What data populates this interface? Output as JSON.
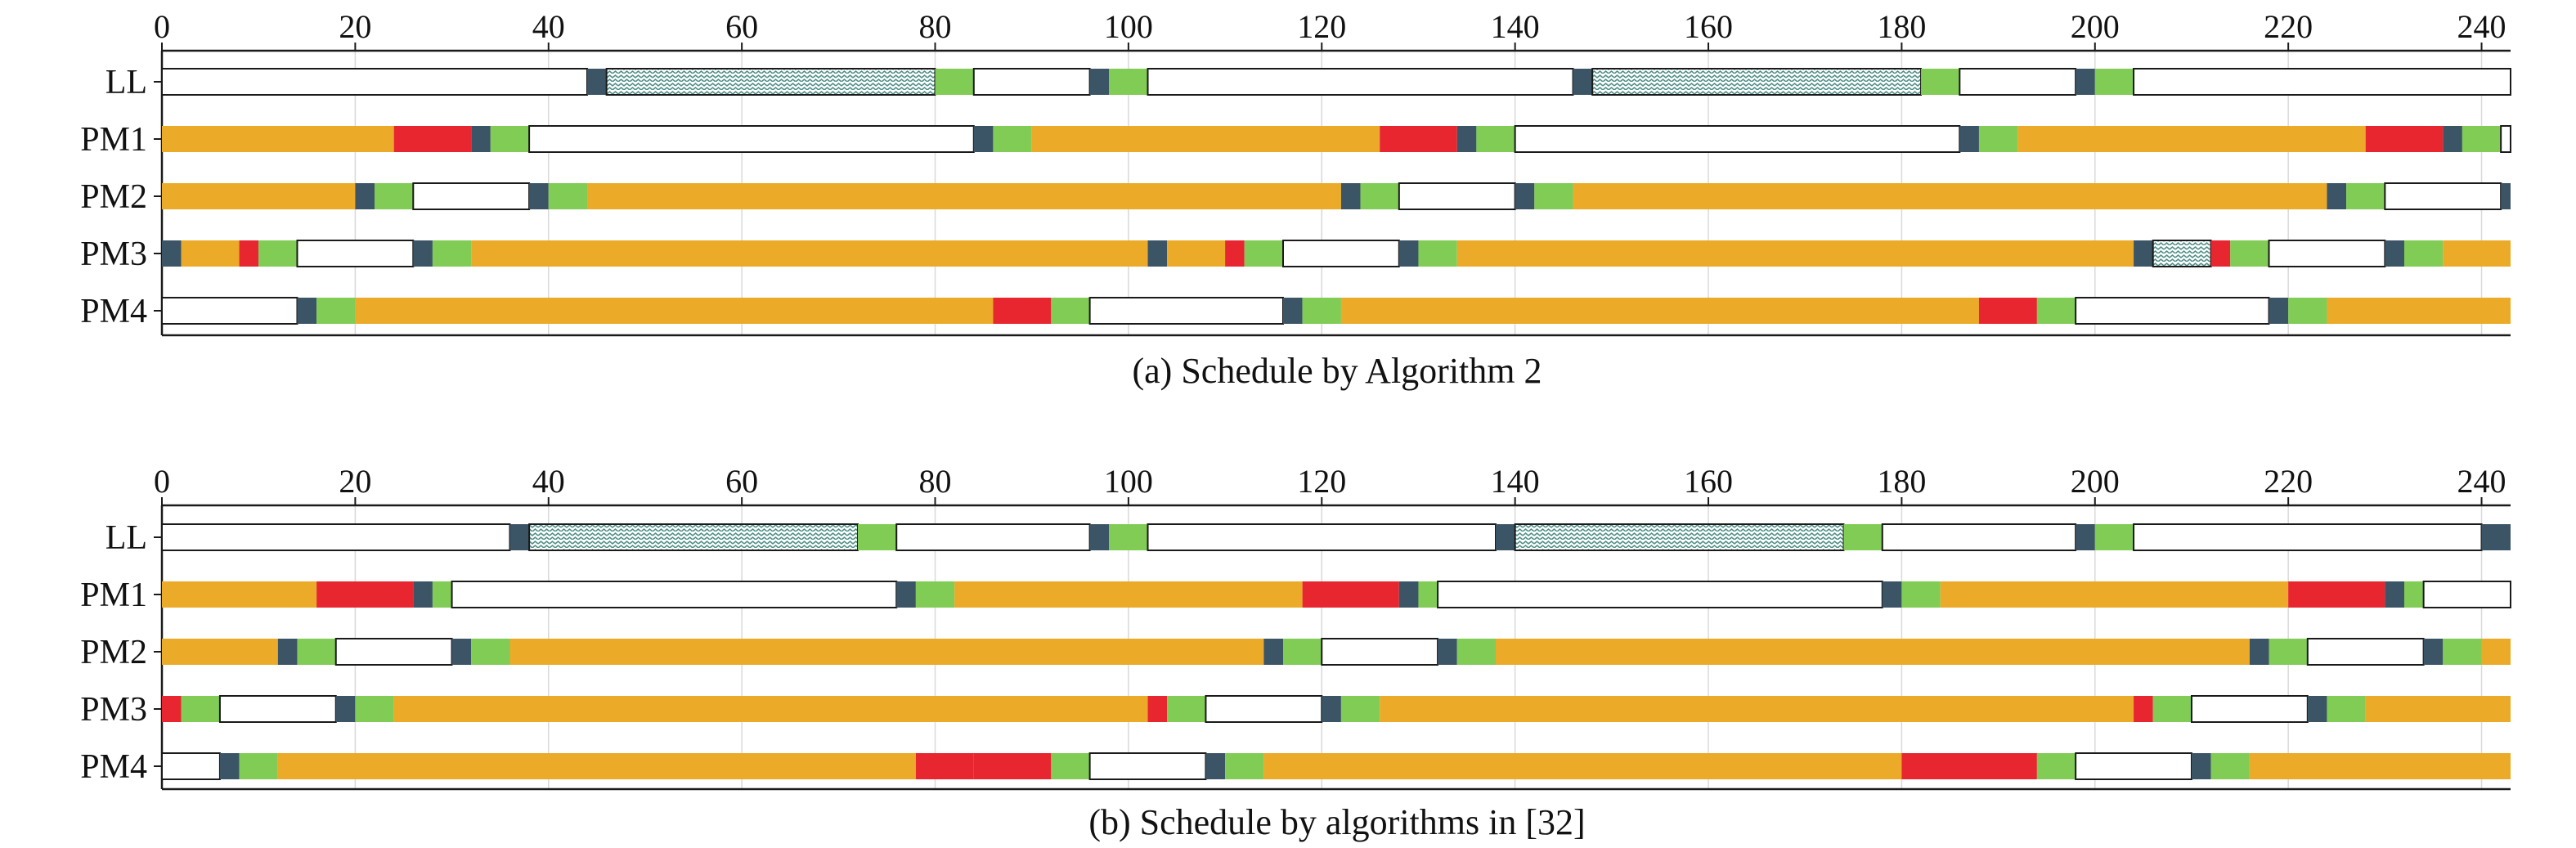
{
  "colors": {
    "process": "#EBAA27",
    "failure": "#E8262F",
    "block": "#3C5566",
    "green": "#80CC55",
    "idle_fill": "#FFFFFF",
    "idle_stroke": "#1a1a1a",
    "hatch": "#4F8F88",
    "grid": "#d9d9d9",
    "axis": "#1a1a1a"
  },
  "legend_note": "Segment kinds: process (orange), failure (red), block (dark slate), transfer (green), idle (white box), hatch (zigzag pattern)",
  "chart_data": [
    {
      "type": "gantt",
      "title": "(a) Schedule by Algorithm 2",
      "xlim": [
        0,
        243
      ],
      "xticks": [
        0,
        20,
        40,
        60,
        80,
        100,
        120,
        140,
        160,
        180,
        200,
        220,
        240
      ],
      "grid": true,
      "rows": [
        {
          "label": "LL",
          "segments": [
            [
              0,
              44,
              "idle"
            ],
            [
              44,
              46,
              "block"
            ],
            [
              46,
              80,
              "hatch"
            ],
            [
              80,
              84,
              "green"
            ],
            [
              84,
              96,
              "idle"
            ],
            [
              96,
              98,
              "block"
            ],
            [
              98,
              102,
              "green"
            ],
            [
              102,
              146,
              "idle"
            ],
            [
              146,
              148,
              "block"
            ],
            [
              148,
              182,
              "hatch"
            ],
            [
              182,
              186,
              "green"
            ],
            [
              186,
              198,
              "idle"
            ],
            [
              198,
              200,
              "block"
            ],
            [
              200,
              204,
              "green"
            ],
            [
              204,
              243,
              "idle"
            ]
          ]
        },
        {
          "label": "PM1",
          "segments": [
            [
              0,
              24,
              "process"
            ],
            [
              24,
              32,
              "failure"
            ],
            [
              32,
              34,
              "block"
            ],
            [
              34,
              38,
              "green"
            ],
            [
              38,
              84,
              "idle"
            ],
            [
              84,
              86,
              "block"
            ],
            [
              86,
              90,
              "green"
            ],
            [
              90,
              126,
              "process"
            ],
            [
              126,
              134,
              "failure"
            ],
            [
              134,
              136,
              "block"
            ],
            [
              136,
              140,
              "green"
            ],
            [
              140,
              186,
              "idle"
            ],
            [
              186,
              188,
              "block"
            ],
            [
              188,
              192,
              "green"
            ],
            [
              192,
              228,
              "process"
            ],
            [
              228,
              236,
              "failure"
            ],
            [
              236,
              238,
              "block"
            ],
            [
              238,
              242,
              "green"
            ],
            [
              242,
              243,
              "idle"
            ]
          ]
        },
        {
          "label": "PM2",
          "segments": [
            [
              0,
              20,
              "process"
            ],
            [
              20,
              22,
              "block"
            ],
            [
              22,
              26,
              "green"
            ],
            [
              26,
              38,
              "idle"
            ],
            [
              38,
              40,
              "block"
            ],
            [
              40,
              44,
              "green"
            ],
            [
              44,
              122,
              "process"
            ],
            [
              122,
              124,
              "block"
            ],
            [
              124,
              128,
              "green"
            ],
            [
              128,
              140,
              "idle"
            ],
            [
              140,
              142,
              "block"
            ],
            [
              142,
              146,
              "green"
            ],
            [
              146,
              224,
              "process"
            ],
            [
              224,
              226,
              "block"
            ],
            [
              226,
              230,
              "green"
            ],
            [
              230,
              242,
              "idle"
            ],
            [
              242,
              243,
              "block"
            ]
          ]
        },
        {
          "label": "PM3",
          "segments": [
            [
              0,
              2,
              "block"
            ],
            [
              2,
              8,
              "process"
            ],
            [
              8,
              10,
              "failure"
            ],
            [
              10,
              14,
              "green"
            ],
            [
              14,
              26,
              "idle"
            ],
            [
              26,
              28,
              "block"
            ],
            [
              28,
              32,
              "green"
            ],
            [
              32,
              102,
              "process"
            ],
            [
              102,
              104,
              "block"
            ],
            [
              104,
              110,
              "process"
            ],
            [
              110,
              112,
              "failure"
            ],
            [
              112,
              116,
              "green"
            ],
            [
              116,
              128,
              "idle"
            ],
            [
              128,
              130,
              "block"
            ],
            [
              130,
              134,
              "green"
            ],
            [
              134,
              204,
              "process"
            ],
            [
              204,
              206,
              "block"
            ],
            [
              206,
              212,
              "hatch"
            ],
            [
              212,
              214,
              "failure"
            ],
            [
              214,
              218,
              "green"
            ],
            [
              218,
              230,
              "idle"
            ],
            [
              230,
              232,
              "block"
            ],
            [
              232,
              236,
              "green"
            ],
            [
              236,
              243,
              "process"
            ]
          ]
        },
        {
          "label": "PM4",
          "segments": [
            [
              0,
              14,
              "idle"
            ],
            [
              14,
              16,
              "block"
            ],
            [
              16,
              20,
              "green"
            ],
            [
              20,
              86,
              "process"
            ],
            [
              86,
              92,
              "failure"
            ],
            [
              92,
              96,
              "green"
            ],
            [
              96,
              116,
              "idle"
            ],
            [
              116,
              118,
              "block"
            ],
            [
              118,
              122,
              "green"
            ],
            [
              122,
              188,
              "process"
            ],
            [
              188,
              194,
              "failure"
            ],
            [
              194,
              198,
              "green"
            ],
            [
              198,
              218,
              "idle"
            ],
            [
              218,
              220,
              "block"
            ],
            [
              220,
              224,
              "green"
            ],
            [
              224,
              243,
              "process"
            ]
          ]
        }
      ]
    },
    {
      "type": "gantt",
      "title": "(b) Schedule by algorithms in [32]",
      "xlim": [
        0,
        243
      ],
      "xticks": [
        0,
        20,
        40,
        60,
        80,
        100,
        120,
        140,
        160,
        180,
        200,
        220,
        240
      ],
      "grid": true,
      "rows": [
        {
          "label": "LL",
          "segments": [
            [
              0,
              36,
              "idle"
            ],
            [
              36,
              38,
              "block"
            ],
            [
              38,
              72,
              "hatch"
            ],
            [
              72,
              76,
              "green"
            ],
            [
              76,
              96,
              "idle"
            ],
            [
              96,
              98,
              "block"
            ],
            [
              98,
              102,
              "green"
            ],
            [
              102,
              138,
              "idle"
            ],
            [
              138,
              140,
              "block"
            ],
            [
              140,
              174,
              "hatch"
            ],
            [
              174,
              178,
              "green"
            ],
            [
              178,
              198,
              "idle"
            ],
            [
              198,
              200,
              "block"
            ],
            [
              200,
              204,
              "green"
            ],
            [
              204,
              240,
              "idle"
            ],
            [
              240,
              243,
              "block"
            ]
          ]
        },
        {
          "label": "PM1",
          "segments": [
            [
              0,
              16,
              "process"
            ],
            [
              16,
              26,
              "failure"
            ],
            [
              26,
              28,
              "block"
            ],
            [
              28,
              30,
              "green"
            ],
            [
              30,
              76,
              "idle"
            ],
            [
              76,
              78,
              "block"
            ],
            [
              78,
              82,
              "green"
            ],
            [
              82,
              118,
              "process"
            ],
            [
              118,
              128,
              "failure"
            ],
            [
              128,
              130,
              "block"
            ],
            [
              130,
              132,
              "green"
            ],
            [
              132,
              178,
              "idle"
            ],
            [
              178,
              180,
              "block"
            ],
            [
              180,
              184,
              "green"
            ],
            [
              184,
              220,
              "process"
            ],
            [
              220,
              230,
              "failure"
            ],
            [
              230,
              232,
              "block"
            ],
            [
              232,
              234,
              "green"
            ],
            [
              234,
              243,
              "idle"
            ]
          ]
        },
        {
          "label": "PM2",
          "segments": [
            [
              0,
              12,
              "process"
            ],
            [
              12,
              14,
              "block"
            ],
            [
              14,
              18,
              "green"
            ],
            [
              18,
              30,
              "idle"
            ],
            [
              30,
              32,
              "block"
            ],
            [
              32,
              36,
              "green"
            ],
            [
              36,
              114,
              "process"
            ],
            [
              114,
              116,
              "block"
            ],
            [
              116,
              120,
              "green"
            ],
            [
              120,
              132,
              "idle"
            ],
            [
              132,
              134,
              "block"
            ],
            [
              134,
              138,
              "green"
            ],
            [
              138,
              216,
              "process"
            ],
            [
              216,
              218,
              "block"
            ],
            [
              218,
              222,
              "green"
            ],
            [
              222,
              234,
              "idle"
            ],
            [
              234,
              236,
              "block"
            ],
            [
              236,
              240,
              "green"
            ],
            [
              240,
              243,
              "process"
            ]
          ]
        },
        {
          "label": "PM3",
          "segments": [
            [
              0,
              2,
              "failure"
            ],
            [
              2,
              6,
              "green"
            ],
            [
              6,
              18,
              "idle"
            ],
            [
              18,
              20,
              "block"
            ],
            [
              20,
              24,
              "green"
            ],
            [
              24,
              102,
              "process"
            ],
            [
              102,
              104,
              "failure"
            ],
            [
              104,
              108,
              "green"
            ],
            [
              108,
              120,
              "idle"
            ],
            [
              120,
              122,
              "block"
            ],
            [
              122,
              126,
              "green"
            ],
            [
              126,
              204,
              "process"
            ],
            [
              204,
              206,
              "failure"
            ],
            [
              206,
              210,
              "green"
            ],
            [
              210,
              222,
              "idle"
            ],
            [
              222,
              224,
              "block"
            ],
            [
              224,
              228,
              "green"
            ],
            [
              228,
              243,
              "process"
            ]
          ]
        },
        {
          "label": "PM4",
          "segments": [
            [
              0,
              6,
              "idle"
            ],
            [
              6,
              8,
              "block"
            ],
            [
              8,
              12,
              "green"
            ],
            [
              12,
              78,
              "process"
            ],
            [
              78,
              84,
              "failure"
            ],
            [
              84,
              92,
              "failure"
            ],
            [
              92,
              96,
              "green"
            ],
            [
              96,
              108,
              "idle"
            ],
            [
              108,
              110,
              "block"
            ],
            [
              110,
              114,
              "green"
            ],
            [
              114,
              180,
              "process"
            ],
            [
              180,
              194,
              "failure"
            ],
            [
              194,
              198,
              "green"
            ],
            [
              198,
              210,
              "idle"
            ],
            [
              210,
              212,
              "block"
            ],
            [
              212,
              216,
              "green"
            ],
            [
              216,
              243,
              "process"
            ]
          ]
        }
      ]
    }
  ]
}
